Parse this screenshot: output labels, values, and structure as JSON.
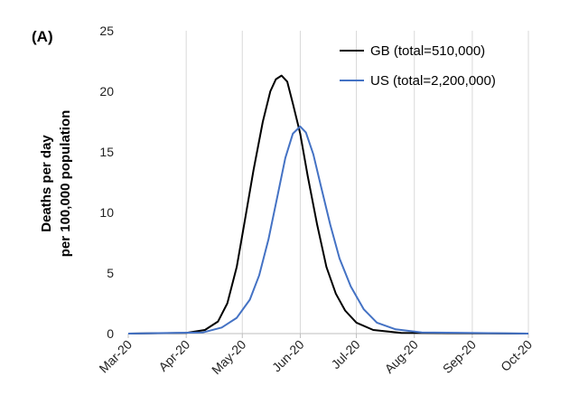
{
  "chart_data": {
    "type": "line",
    "panel_label": "(A)",
    "ylabel_lines": [
      "Deaths per day",
      "per 100,000 population"
    ],
    "ylim": [
      0,
      25
    ],
    "yticks": [
      0,
      5,
      10,
      15,
      20,
      25
    ],
    "xlim": [
      "2020-03-01",
      "2020-10-01"
    ],
    "xtick_labels": [
      "Mar-20",
      "Apr-20",
      "May-20",
      "Jun-20",
      "Jul-20",
      "Aug-20",
      "Sep-20",
      "Oct-20"
    ],
    "grid": "vertical",
    "legend_position": "top-right",
    "series": [
      {
        "name": "GB (total=510,000)",
        "color": "#000000",
        "points": [
          [
            "2020-03-01",
            0
          ],
          [
            "2020-04-01",
            0.05
          ],
          [
            "2020-04-11",
            0.3
          ],
          [
            "2020-04-18",
            1.0
          ],
          [
            "2020-04-23",
            2.5
          ],
          [
            "2020-04-28",
            5.5
          ],
          [
            "2020-05-02",
            9.0
          ],
          [
            "2020-05-07",
            13.5
          ],
          [
            "2020-05-12",
            17.5
          ],
          [
            "2020-05-16",
            20.0
          ],
          [
            "2020-05-19",
            21.0
          ],
          [
            "2020-05-22",
            21.3
          ],
          [
            "2020-05-25",
            20.8
          ],
          [
            "2020-05-28",
            19.0
          ],
          [
            "2020-06-01",
            16.5
          ],
          [
            "2020-06-05",
            13.0
          ],
          [
            "2020-06-10",
            9.0
          ],
          [
            "2020-06-15",
            5.5
          ],
          [
            "2020-06-20",
            3.3
          ],
          [
            "2020-06-25",
            1.9
          ],
          [
            "2020-07-01",
            0.9
          ],
          [
            "2020-07-10",
            0.3
          ],
          [
            "2020-07-25",
            0.05
          ],
          [
            "2020-10-01",
            0
          ]
        ]
      },
      {
        "name": "US (total=2,200,000)",
        "color": "#4472C4",
        "points": [
          [
            "2020-03-01",
            0
          ],
          [
            "2020-04-10",
            0.1
          ],
          [
            "2020-04-20",
            0.5
          ],
          [
            "2020-04-28",
            1.3
          ],
          [
            "2020-05-05",
            2.8
          ],
          [
            "2020-05-10",
            4.8
          ],
          [
            "2020-05-15",
            7.8
          ],
          [
            "2020-05-20",
            11.5
          ],
          [
            "2020-05-24",
            14.5
          ],
          [
            "2020-05-28",
            16.5
          ],
          [
            "2020-06-01",
            17.1
          ],
          [
            "2020-06-04",
            16.6
          ],
          [
            "2020-06-08",
            14.8
          ],
          [
            "2020-06-12",
            12.2
          ],
          [
            "2020-06-17",
            9.0
          ],
          [
            "2020-06-22",
            6.2
          ],
          [
            "2020-06-28",
            3.9
          ],
          [
            "2020-07-05",
            2.0
          ],
          [
            "2020-07-12",
            0.9
          ],
          [
            "2020-07-22",
            0.35
          ],
          [
            "2020-08-05",
            0.1
          ],
          [
            "2020-10-01",
            0
          ]
        ]
      }
    ]
  }
}
